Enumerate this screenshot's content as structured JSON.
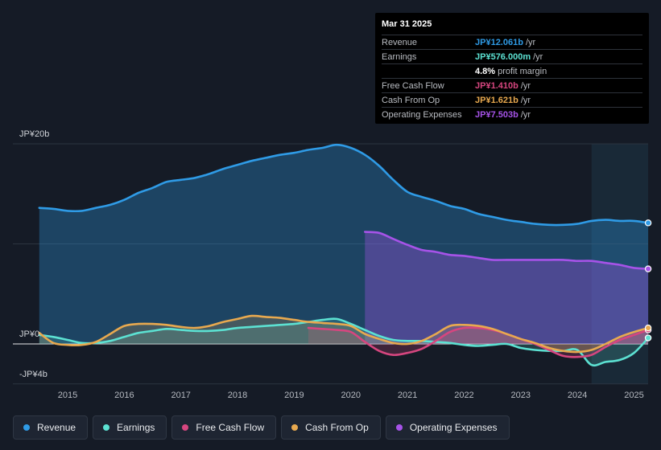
{
  "tooltip": {
    "date": "Mar 31 2025",
    "rows": [
      {
        "label": "Revenue",
        "value": "JP¥12.061b",
        "unit": "/yr",
        "color": "#2f9be6"
      },
      {
        "label": "Earnings",
        "value": "JP¥576.000m",
        "unit": "/yr",
        "color": "#5ce1d2"
      },
      {
        "label": "",
        "value": "4.8%",
        "unit": "profit margin",
        "color": "#ffffff"
      },
      {
        "label": "Free Cash Flow",
        "value": "JP¥1.410b",
        "unit": "/yr",
        "color": "#d6467f"
      },
      {
        "label": "Cash From Op",
        "value": "JP¥1.621b",
        "unit": "/yr",
        "color": "#e8a94f"
      },
      {
        "label": "Operating Expenses",
        "value": "JP¥7.503b",
        "unit": "/yr",
        "color": "#a653e8"
      }
    ]
  },
  "legend": [
    {
      "label": "Revenue",
      "color": "#2f9be6"
    },
    {
      "label": "Earnings",
      "color": "#5ce1d2"
    },
    {
      "label": "Free Cash Flow",
      "color": "#d6467f"
    },
    {
      "label": "Cash From Op",
      "color": "#e8a94f"
    },
    {
      "label": "Operating Expenses",
      "color": "#a653e8"
    }
  ],
  "chart_data": {
    "type": "area",
    "title": "",
    "xlabel": "",
    "ylabel": "",
    "ylim": [
      -4,
      20
    ],
    "y_tick_labels": [
      {
        "value": 20,
        "label": "JP¥20b"
      },
      {
        "value": 0,
        "label": "JP¥0"
      },
      {
        "value": -4,
        "label": "-JP¥4b"
      }
    ],
    "x_tick_labels": [
      "2015",
      "2016",
      "2017",
      "2018",
      "2019",
      "2020",
      "2021",
      "2022",
      "2023",
      "2024",
      "2025"
    ],
    "xlim": [
      2014.0,
      2025.25
    ],
    "highlight_start": 2024.25,
    "series": [
      {
        "name": "Revenue",
        "color": "#2f9be6",
        "x": [
          2014.5,
          2014.75,
          2015.0,
          2015.25,
          2015.5,
          2015.75,
          2016.0,
          2016.25,
          2016.5,
          2016.75,
          2017.0,
          2017.25,
          2017.5,
          2017.75,
          2018.0,
          2018.25,
          2018.5,
          2018.75,
          2019.0,
          2019.25,
          2019.5,
          2019.75,
          2020.0,
          2020.25,
          2020.5,
          2020.75,
          2021.0,
          2021.25,
          2021.5,
          2021.75,
          2022.0,
          2022.25,
          2022.5,
          2022.75,
          2023.0,
          2023.25,
          2023.5,
          2023.75,
          2024.0,
          2024.25,
          2024.5,
          2024.75,
          2025.0,
          2025.25
        ],
        "values": [
          13.6,
          13.5,
          13.3,
          13.3,
          13.6,
          13.9,
          14.4,
          15.1,
          15.6,
          16.2,
          16.4,
          16.6,
          17.0,
          17.5,
          17.9,
          18.3,
          18.6,
          18.9,
          19.1,
          19.4,
          19.6,
          19.9,
          19.6,
          18.9,
          17.8,
          16.4,
          15.2,
          14.7,
          14.3,
          13.8,
          13.5,
          13.0,
          12.7,
          12.4,
          12.2,
          12.0,
          11.9,
          11.9,
          12.0,
          12.3,
          12.4,
          12.3,
          12.3,
          12.1
        ]
      },
      {
        "name": "Earnings",
        "color": "#5ce1d2",
        "x": [
          2014.5,
          2014.75,
          2015.0,
          2015.25,
          2015.5,
          2015.75,
          2016.0,
          2016.25,
          2016.5,
          2016.75,
          2017.0,
          2017.25,
          2017.5,
          2017.75,
          2018.0,
          2018.25,
          2018.5,
          2018.75,
          2019.0,
          2019.25,
          2019.5,
          2019.75,
          2020.0,
          2020.25,
          2020.5,
          2020.75,
          2021.0,
          2021.25,
          2021.5,
          2021.75,
          2022.0,
          2022.25,
          2022.5,
          2022.75,
          2023.0,
          2023.25,
          2023.5,
          2023.75,
          2024.0,
          2024.25,
          2024.5,
          2024.75,
          2025.0,
          2025.25
        ],
        "values": [
          0.9,
          0.7,
          0.4,
          0.1,
          0.1,
          0.3,
          0.7,
          1.1,
          1.3,
          1.5,
          1.4,
          1.3,
          1.3,
          1.4,
          1.6,
          1.7,
          1.8,
          1.9,
          2.0,
          2.2,
          2.4,
          2.5,
          2.0,
          1.4,
          0.8,
          0.4,
          0.3,
          0.3,
          0.2,
          0.1,
          -0.1,
          -0.2,
          -0.1,
          0.0,
          -0.4,
          -0.6,
          -0.7,
          -0.7,
          -0.6,
          -2.1,
          -1.8,
          -1.6,
          -0.9,
          0.6
        ]
      },
      {
        "name": "Free Cash Flow",
        "color": "#d6467f",
        "x": [
          2019.25,
          2019.5,
          2019.75,
          2020.0,
          2020.25,
          2020.5,
          2020.75,
          2021.0,
          2021.25,
          2021.5,
          2021.75,
          2022.0,
          2022.25,
          2022.5,
          2022.75,
          2023.0,
          2023.25,
          2023.5,
          2023.75,
          2024.0,
          2024.25,
          2024.5,
          2024.75,
          2025.0,
          2025.25
        ],
        "values": [
          1.6,
          1.5,
          1.4,
          1.2,
          0.2,
          -0.7,
          -1.1,
          -0.9,
          -0.5,
          0.3,
          1.2,
          1.6,
          1.6,
          1.4,
          1.0,
          0.5,
          0.0,
          -0.6,
          -1.2,
          -1.3,
          -1.1,
          -0.3,
          0.4,
          0.9,
          1.4
        ]
      },
      {
        "name": "Cash From Op",
        "color": "#e8a94f",
        "x": [
          2014.5,
          2014.75,
          2015.0,
          2015.25,
          2015.5,
          2015.75,
          2016.0,
          2016.25,
          2016.5,
          2016.75,
          2017.0,
          2017.25,
          2017.5,
          2017.75,
          2018.0,
          2018.25,
          2018.5,
          2018.75,
          2019.0,
          2019.25,
          2019.5,
          2019.75,
          2020.0,
          2020.25,
          2020.5,
          2020.75,
          2021.0,
          2021.25,
          2021.5,
          2021.75,
          2022.0,
          2022.25,
          2022.5,
          2022.75,
          2023.0,
          2023.25,
          2023.5,
          2023.75,
          2024.0,
          2024.25,
          2024.5,
          2024.75,
          2025.0,
          2025.25
        ],
        "values": [
          1.1,
          0.1,
          -0.1,
          -0.1,
          0.2,
          1.0,
          1.8,
          2.0,
          2.0,
          1.9,
          1.7,
          1.6,
          1.8,
          2.2,
          2.5,
          2.8,
          2.7,
          2.6,
          2.4,
          2.2,
          2.1,
          2.0,
          1.8,
          1.0,
          0.5,
          0.1,
          0.0,
          0.3,
          1.0,
          1.8,
          1.9,
          1.8,
          1.5,
          1.0,
          0.5,
          0.1,
          -0.4,
          -0.7,
          -0.8,
          -0.6,
          0.0,
          0.7,
          1.2,
          1.6
        ]
      },
      {
        "name": "Operating Expenses",
        "color": "#a653e8",
        "x": [
          2020.25,
          2020.5,
          2020.75,
          2021.0,
          2021.25,
          2021.5,
          2021.75,
          2022.0,
          2022.25,
          2022.5,
          2022.75,
          2023.0,
          2023.25,
          2023.5,
          2023.75,
          2024.0,
          2024.25,
          2024.5,
          2024.75,
          2025.0,
          2025.25
        ],
        "values": [
          11.2,
          11.1,
          10.5,
          9.9,
          9.4,
          9.2,
          8.9,
          8.8,
          8.6,
          8.4,
          8.4,
          8.4,
          8.4,
          8.4,
          8.4,
          8.3,
          8.3,
          8.1,
          7.9,
          7.6,
          7.5
        ]
      }
    ]
  }
}
